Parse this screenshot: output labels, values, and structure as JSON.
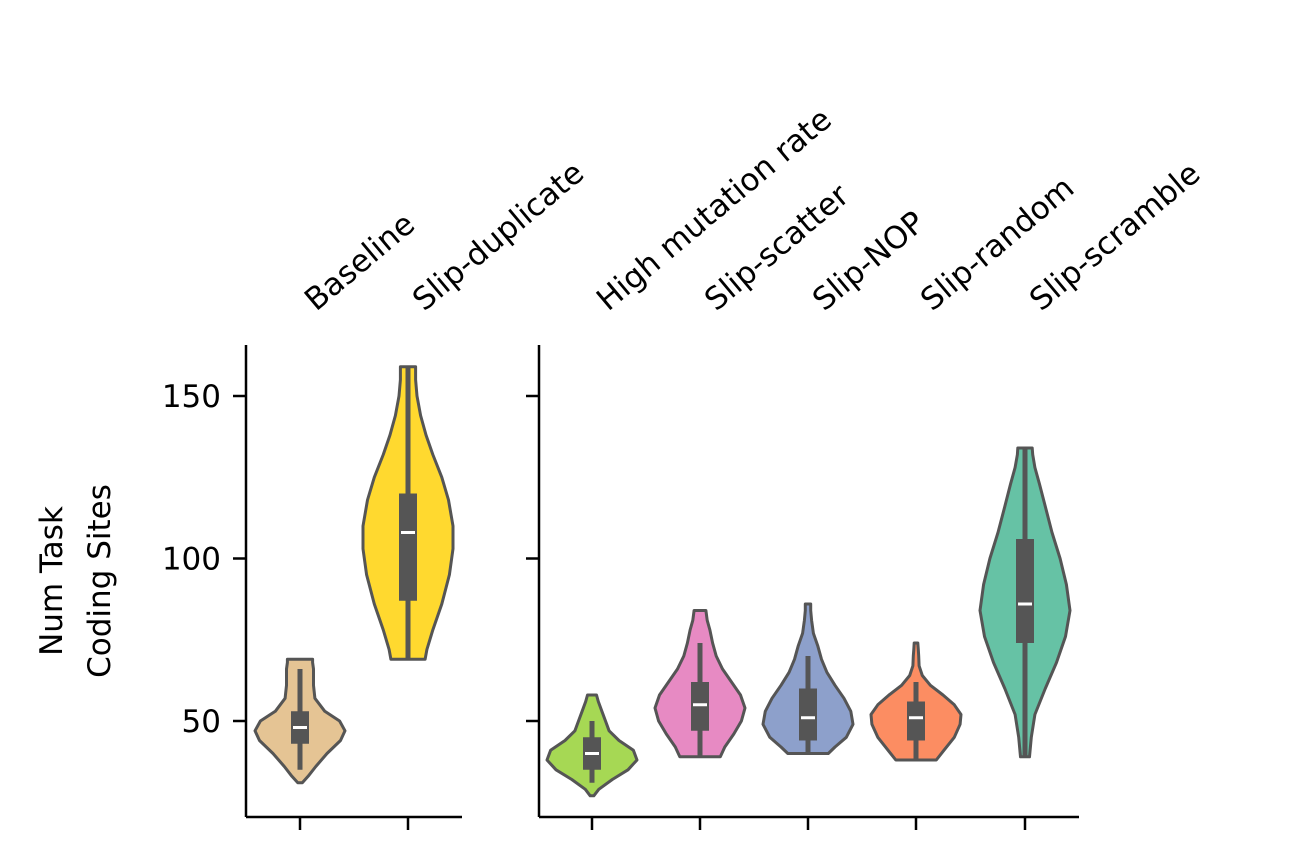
{
  "chart_data": {
    "type": "violin",
    "ylabel_lines": [
      "Num Task",
      "Coding Sites"
    ],
    "yticks": [
      50,
      100,
      150
    ],
    "panels": [
      {
        "name": "left",
        "categories": [
          {
            "label": "Baseline",
            "color": "#e5c494",
            "min": 31,
            "max": 69,
            "q1": 43,
            "median": 48,
            "q3": 53,
            "whisker_low": 35,
            "whisker_high": 66,
            "profile": [
              [
                31,
                0.05
              ],
              [
                33,
                0.18
              ],
              [
                36,
                0.35
              ],
              [
                40,
                0.6
              ],
              [
                44,
                0.9
              ],
              [
                47,
                1.0
              ],
              [
                50,
                0.88
              ],
              [
                53,
                0.55
              ],
              [
                57,
                0.33
              ],
              [
                61,
                0.3
              ],
              [
                64,
                0.3
              ],
              [
                66,
                0.3
              ],
              [
                68,
                0.28
              ],
              [
                69,
                0.28
              ]
            ]
          },
          {
            "label": "Slip-duplicate",
            "color": "#ffd92f",
            "min": 69,
            "max": 159,
            "q1": 87,
            "median": 108,
            "q3": 120,
            "whisker_low": 69,
            "whisker_high": 159,
            "profile": [
              [
                69,
                0.38
              ],
              [
                72,
                0.42
              ],
              [
                78,
                0.55
              ],
              [
                86,
                0.75
              ],
              [
                95,
                0.92
              ],
              [
                103,
                1.0
              ],
              [
                110,
                1.0
              ],
              [
                118,
                0.9
              ],
              [
                125,
                0.75
              ],
              [
                132,
                0.55
              ],
              [
                138,
                0.4
              ],
              [
                144,
                0.28
              ],
              [
                150,
                0.2
              ],
              [
                155,
                0.17
              ],
              [
                159,
                0.17
              ]
            ]
          }
        ]
      },
      {
        "name": "right",
        "categories": [
          {
            "label": "High mutation rate",
            "color": "#a6d854",
            "min": 27,
            "max": 58,
            "q1": 35,
            "median": 40,
            "q3": 45,
            "whisker_low": 31,
            "whisker_high": 50,
            "profile": [
              [
                27,
                0.04
              ],
              [
                29,
                0.15
              ],
              [
                32,
                0.45
              ],
              [
                35,
                0.8
              ],
              [
                38,
                1.0
              ],
              [
                41,
                0.92
              ],
              [
                44,
                0.6
              ],
              [
                47,
                0.38
              ],
              [
                50,
                0.3
              ],
              [
                53,
                0.22
              ],
              [
                56,
                0.14
              ],
              [
                58,
                0.1
              ]
            ]
          },
          {
            "label": "Slip-scatter",
            "color": "#e78ac3",
            "min": 39,
            "max": 84,
            "q1": 47,
            "median": 55,
            "q3": 62,
            "whisker_low": 39,
            "whisker_high": 74,
            "profile": [
              [
                39,
                0.45
              ],
              [
                42,
                0.55
              ],
              [
                46,
                0.75
              ],
              [
                50,
                0.92
              ],
              [
                54,
                1.0
              ],
              [
                58,
                0.9
              ],
              [
                62,
                0.7
              ],
              [
                66,
                0.5
              ],
              [
                70,
                0.36
              ],
              [
                74,
                0.28
              ],
              [
                78,
                0.22
              ],
              [
                81,
                0.16
              ],
              [
                84,
                0.13
              ]
            ]
          },
          {
            "label": "Slip-NOP",
            "color": "#8da0cb",
            "min": 40,
            "max": 86,
            "q1": 44,
            "median": 51,
            "q3": 60,
            "whisker_low": 40,
            "whisker_high": 70,
            "profile": [
              [
                40,
                0.45
              ],
              [
                42,
                0.6
              ],
              [
                45,
                0.85
              ],
              [
                49,
                1.0
              ],
              [
                53,
                0.95
              ],
              [
                57,
                0.8
              ],
              [
                61,
                0.6
              ],
              [
                65,
                0.42
              ],
              [
                69,
                0.3
              ],
              [
                73,
                0.22
              ],
              [
                77,
                0.12
              ],
              [
                81,
                0.08
              ],
              [
                84,
                0.06
              ],
              [
                86,
                0.06
              ]
            ]
          },
          {
            "label": "Slip-random",
            "color": "#fc8d62",
            "min": 38,
            "max": 74,
            "q1": 44,
            "median": 51,
            "q3": 56,
            "whisker_low": 38,
            "whisker_high": 62,
            "profile": [
              [
                38,
                0.45
              ],
              [
                41,
                0.62
              ],
              [
                45,
                0.85
              ],
              [
                49,
                0.98
              ],
              [
                52,
                1.0
              ],
              [
                55,
                0.85
              ],
              [
                58,
                0.6
              ],
              [
                61,
                0.32
              ],
              [
                64,
                0.14
              ],
              [
                67,
                0.07
              ],
              [
                70,
                0.06
              ],
              [
                72,
                0.05
              ],
              [
                74,
                0.04
              ]
            ]
          },
          {
            "label": "Slip-scramble",
            "color": "#66c2a5",
            "min": 39,
            "max": 134,
            "q1": 74,
            "median": 86,
            "q3": 106,
            "whisker_low": 39,
            "whisker_high": 134,
            "profile": [
              [
                39,
                0.1
              ],
              [
                45,
                0.14
              ],
              [
                52,
                0.22
              ],
              [
                60,
                0.45
              ],
              [
                68,
                0.7
              ],
              [
                76,
                0.9
              ],
              [
                84,
                1.0
              ],
              [
                92,
                0.92
              ],
              [
                100,
                0.78
              ],
              [
                108,
                0.6
              ],
              [
                116,
                0.45
              ],
              [
                123,
                0.32
              ],
              [
                128,
                0.22
              ],
              [
                132,
                0.17
              ],
              [
                134,
                0.16
              ]
            ]
          }
        ]
      }
    ]
  }
}
